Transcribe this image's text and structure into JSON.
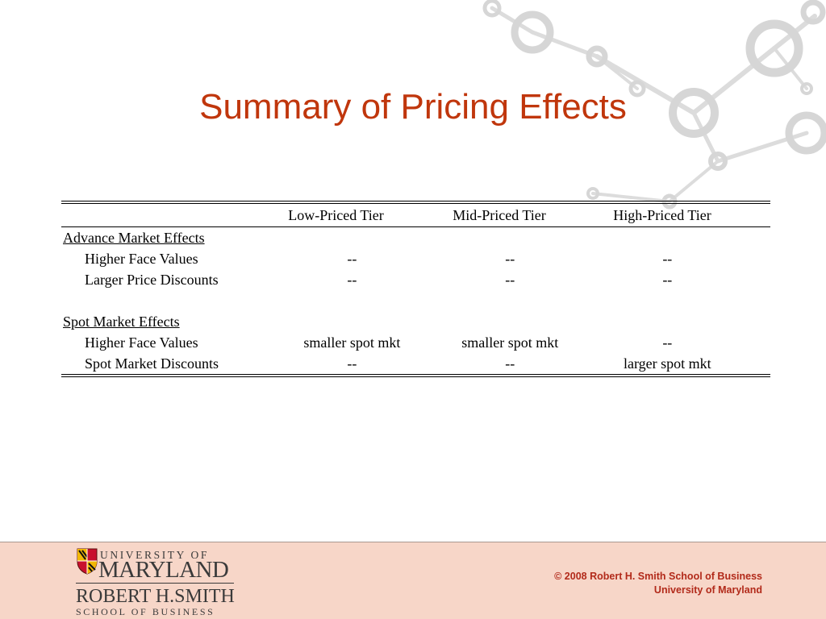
{
  "slide": {
    "title": "Summary of Pricing Effects"
  },
  "table": {
    "headers": [
      "",
      "Low-Priced Tier",
      "Mid-Priced Tier",
      "High-Priced Tier"
    ],
    "sections": [
      {
        "label": "Advance Market Effects",
        "rows": [
          {
            "label": "Higher Face Values",
            "low": "--",
            "mid": "--",
            "high": "--"
          },
          {
            "label": "Larger Price Discounts",
            "low": "--",
            "mid": "--",
            "high": "--"
          }
        ]
      },
      {
        "label": "Spot Market Effects",
        "rows": [
          {
            "label": "Higher Face Values",
            "low": "smaller spot mkt",
            "mid": "smaller spot mkt",
            "high": "--"
          },
          {
            "label": "Spot Market Discounts",
            "low": "--",
            "mid": "--",
            "high": "larger spot mkt"
          }
        ]
      }
    ]
  },
  "footer": {
    "logo_line1": "UNIVERSITY OF",
    "logo_line2": "MARYLAND",
    "logo_line3": "ROBERT H.SMITH",
    "logo_line4": "SCHOOL OF BUSINESS",
    "copyright_line1": "© 2008 Robert H. Smith School of Business",
    "copyright_line2": "University of Maryland"
  },
  "colors": {
    "title": "#c0360c",
    "footer_background": "#f7d6c8",
    "footer_text": "#b22a1a",
    "molecule": "#d9d9d9"
  }
}
